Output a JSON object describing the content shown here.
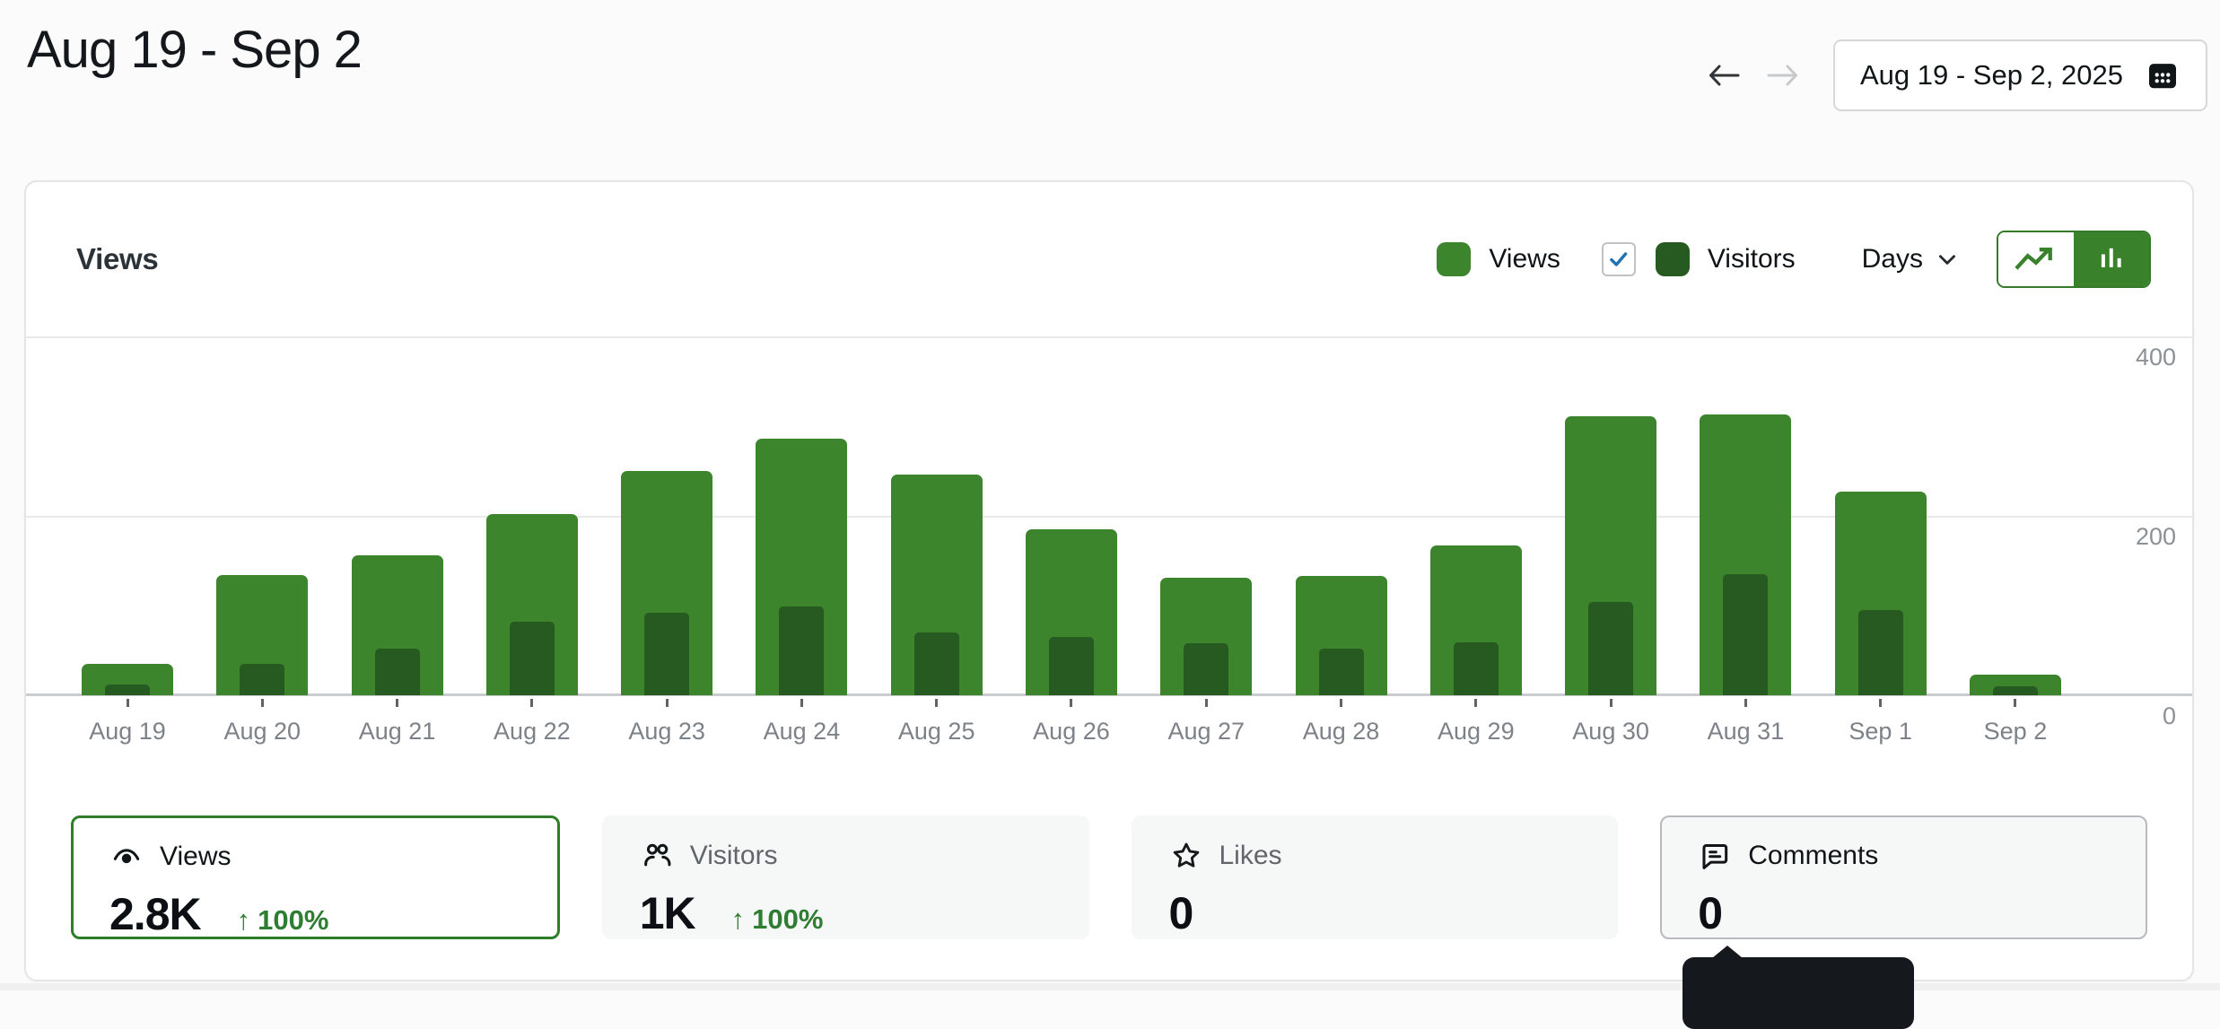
{
  "page": {
    "title": "Aug 19 - Sep 2"
  },
  "date_nav": {
    "range_label": "Aug 19 - Sep 2, 2025"
  },
  "chart_card": {
    "title": "Views",
    "legend": [
      {
        "label": "Views",
        "color": "#3c852d",
        "has_checkbox": false
      },
      {
        "label": "Visitors",
        "color": "#265a20",
        "has_checkbox": true,
        "checked": true
      }
    ],
    "interval": {
      "selected": "Days"
    },
    "view_toggle": {
      "options": [
        "line",
        "bar"
      ],
      "selected": "bar"
    },
    "accent_green": "#3a812c",
    "checkbox_check_color": "#2271b1"
  },
  "chart_data": {
    "type": "bar",
    "categories": [
      "Aug 19",
      "Aug 20",
      "Aug 21",
      "Aug 22",
      "Aug 23",
      "Aug 24",
      "Aug 25",
      "Aug 26",
      "Aug 27",
      "Aug 28",
      "Aug 29",
      "Aug 30",
      "Aug 31",
      "Sep 1",
      "Sep 2"
    ],
    "series": [
      {
        "name": "Views",
        "color": "#3c852d",
        "values": [
          35,
          134,
          156,
          202,
          250,
          286,
          246,
          185,
          131,
          133,
          167,
          311,
          313,
          227,
          23
        ]
      },
      {
        "name": "Visitors",
        "color": "#265a20",
        "values": [
          12,
          35,
          52,
          82,
          92,
          99,
          70,
          65,
          58,
          52,
          59,
          104,
          135,
          95,
          10
        ]
      }
    ],
    "title": "Views",
    "xlabel": "",
    "ylabel": "",
    "ylim": [
      0,
      400
    ],
    "yticks": [
      0,
      200,
      400
    ],
    "y_axis_side": "right",
    "grid": "horizontal",
    "legend_position": "top-right",
    "bar_style": "overlaid"
  },
  "summary_cards": [
    {
      "id": "views",
      "icon": "eye-icon",
      "label": "Views",
      "value": "2.8K",
      "trend_arrow": "↑",
      "trend": "100%",
      "selected": true
    },
    {
      "id": "visitors",
      "icon": "people-icon",
      "label": "Visitors",
      "value": "1K",
      "trend_arrow": "↑",
      "trend": "100%",
      "selected": false
    },
    {
      "id": "likes",
      "icon": "star-icon",
      "label": "Likes",
      "value": "0",
      "selected": false
    },
    {
      "id": "comments",
      "icon": "comment-icon",
      "label": "Comments",
      "value": "0",
      "selected": false,
      "hovered": true
    }
  ],
  "tooltip": {
    "visible": true
  }
}
